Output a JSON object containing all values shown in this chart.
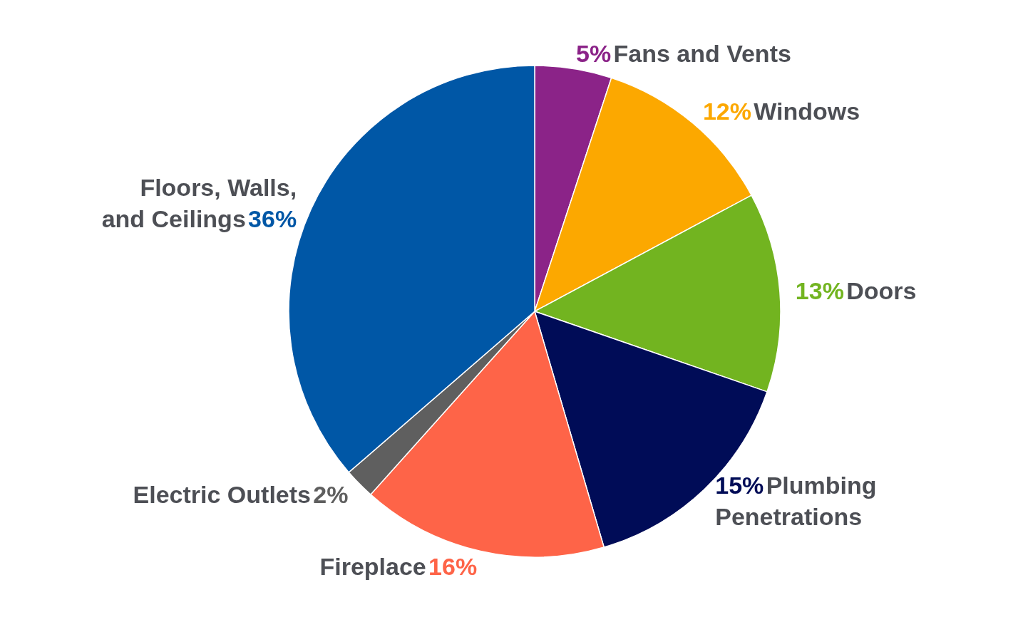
{
  "chart_data": {
    "type": "pie",
    "categories": [
      "Fans and Vents",
      "Windows",
      "Doors",
      "Plumbing Penetrations",
      "Fireplace",
      "Electric Outlets",
      "Floors, Walls, and Ceilings"
    ],
    "values": [
      5,
      12,
      13,
      15,
      16,
      2,
      36
    ],
    "colors": [
      "#8b2388",
      "#fca800",
      "#72b420",
      "#000c57",
      "#fe6448",
      "#5f5f5f",
      "#0057a6"
    ],
    "value_labels": [
      "5%",
      "12%",
      "13%",
      "15%",
      "16%",
      "2%",
      "36%"
    ],
    "legend": false
  }
}
